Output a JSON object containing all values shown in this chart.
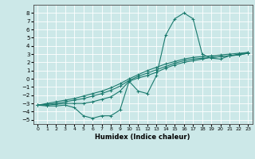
{
  "title": "",
  "xlabel": "Humidex (Indice chaleur)",
  "ylabel": "",
  "background_color": "#cce8e8",
  "grid_color": "#ffffff",
  "line_color": "#1a7a6e",
  "x_values": [
    0,
    1,
    2,
    3,
    4,
    5,
    6,
    7,
    8,
    9,
    10,
    11,
    12,
    13,
    14,
    15,
    16,
    17,
    18,
    19,
    20,
    21,
    22,
    23
  ],
  "series": [
    [
      -3.2,
      -3.3,
      -3.3,
      -3.2,
      -3.5,
      -4.5,
      -4.8,
      -4.5,
      -4.5,
      -3.8,
      -0.3,
      -1.5,
      -1.8,
      0.4,
      5.3,
      7.3,
      8.0,
      7.3,
      3.0,
      2.5,
      2.4,
      2.8,
      3.0,
      3.2
    ],
    [
      -3.2,
      -3.2,
      -3.1,
      -3.0,
      -3.0,
      -3.0,
      -2.8,
      -2.5,
      -2.2,
      -1.5,
      -0.3,
      0.1,
      0.4,
      0.8,
      1.3,
      1.7,
      2.0,
      2.2,
      2.4,
      2.6,
      2.7,
      2.8,
      2.9,
      3.1
    ],
    [
      -3.2,
      -3.1,
      -3.0,
      -2.8,
      -2.6,
      -2.4,
      -2.1,
      -1.8,
      -1.4,
      -0.9,
      -0.2,
      0.3,
      0.7,
      1.1,
      1.5,
      1.9,
      2.2,
      2.4,
      2.5,
      2.6,
      2.7,
      2.8,
      2.9,
      3.1
    ],
    [
      -3.2,
      -3.0,
      -2.8,
      -2.6,
      -2.4,
      -2.1,
      -1.8,
      -1.5,
      -1.1,
      -0.6,
      0.0,
      0.5,
      1.0,
      1.4,
      1.8,
      2.1,
      2.4,
      2.6,
      2.7,
      2.8,
      2.9,
      3.0,
      3.1,
      3.2
    ]
  ],
  "ylim": [
    -5.5,
    9.0
  ],
  "xlim": [
    -0.5,
    23.5
  ],
  "yticks": [
    -5,
    -4,
    -3,
    -2,
    -1,
    0,
    1,
    2,
    3,
    4,
    5,
    6,
    7,
    8
  ],
  "xticks": [
    0,
    1,
    2,
    3,
    4,
    5,
    6,
    7,
    8,
    9,
    10,
    11,
    12,
    13,
    14,
    15,
    16,
    17,
    18,
    19,
    20,
    21,
    22,
    23
  ],
  "marker": "+",
  "markersize": 3,
  "linewidth": 0.8
}
